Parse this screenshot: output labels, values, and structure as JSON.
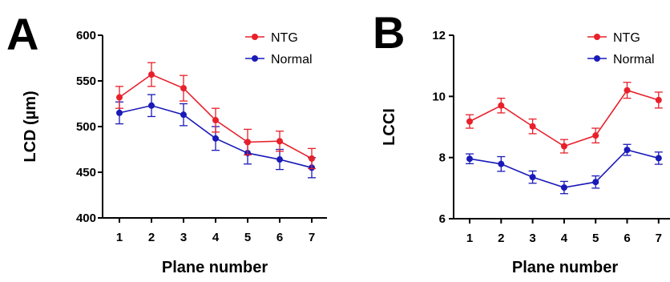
{
  "chart_data": [
    {
      "type": "line",
      "panel_label": "A",
      "xlabel": "Plane number",
      "ylabel": "LCD (µm)",
      "x": [
        1,
        2,
        3,
        4,
        5,
        6,
        7
      ],
      "ylim": [
        400,
        600
      ],
      "yticks": [
        400,
        450,
        500,
        550,
        600
      ],
      "legend_position": "top-right",
      "series": [
        {
          "name": "NTG",
          "color": "#e8202a",
          "values": [
            532,
            557,
            542,
            507,
            483,
            484,
            465
          ],
          "errors": [
            12,
            13,
            14,
            13,
            14,
            11,
            11
          ]
        },
        {
          "name": "Normal",
          "color": "#1a1ab8",
          "values": [
            515,
            523,
            513,
            487,
            471,
            464,
            455
          ],
          "errors": [
            12,
            12,
            12,
            13,
            12,
            11,
            11
          ]
        }
      ]
    },
    {
      "type": "line",
      "panel_label": "B",
      "xlabel": "Plane number",
      "ylabel": "LCCI",
      "x": [
        1,
        2,
        3,
        4,
        5,
        6,
        7
      ],
      "ylim": [
        6,
        12
      ],
      "yticks": [
        6,
        8,
        10,
        12
      ],
      "legend_position": "top-right",
      "series": [
        {
          "name": "NTG",
          "color": "#e8202a",
          "values": [
            9.18,
            9.7,
            9.02,
            8.37,
            8.72,
            10.2,
            9.88
          ],
          "errors": [
            0.22,
            0.24,
            0.24,
            0.22,
            0.24,
            0.26,
            0.26
          ]
        },
        {
          "name": "Normal",
          "color": "#1a1ab8",
          "values": [
            7.96,
            7.79,
            7.36,
            7.02,
            7.2,
            8.25,
            7.98
          ],
          "errors": [
            0.16,
            0.24,
            0.2,
            0.2,
            0.2,
            0.18,
            0.2
          ]
        }
      ]
    }
  ]
}
